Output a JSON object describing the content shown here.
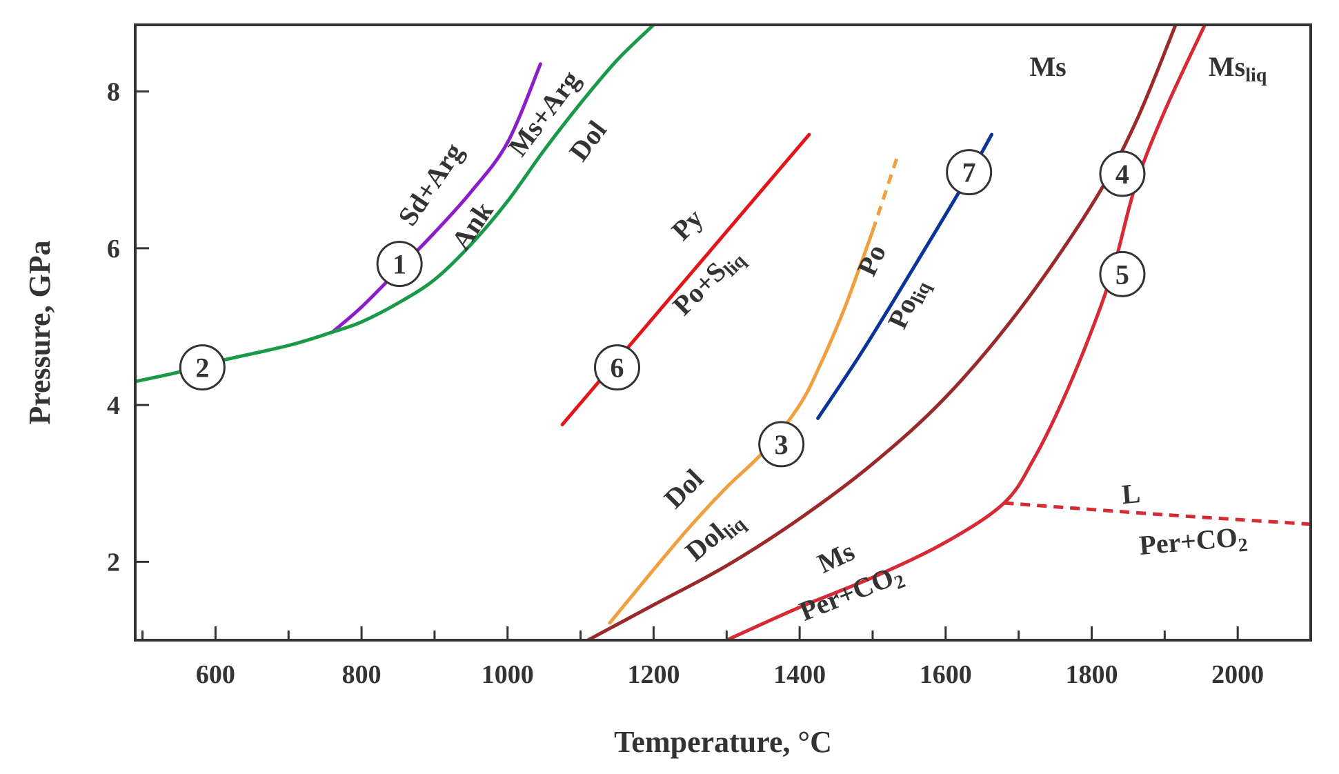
{
  "chart_data": {
    "type": "line",
    "xlabel": "Temperature, °C",
    "ylabel": "Pressure, GPa",
    "xlim": [
      490,
      2100
    ],
    "ylim": [
      1.0,
      8.85
    ],
    "xticks": [
      600,
      800,
      1000,
      1200,
      1400,
      1600,
      1800,
      2000
    ],
    "yticks": [
      2,
      4,
      6,
      8
    ],
    "grid": false,
    "colors": {
      "frame": "#333333",
      "text": "#333333",
      "marker_fill": "#ffffff"
    },
    "series": [
      {
        "color": "#8a1fc9",
        "points": [
          [
            760,
            4.93
          ],
          [
            800,
            5.25
          ],
          [
            850,
            5.72
          ],
          [
            900,
            6.2
          ],
          [
            950,
            6.72
          ],
          [
            1000,
            7.35
          ],
          [
            1045,
            8.35
          ]
        ]
      },
      {
        "color": "#1a9a49",
        "points": [
          [
            490,
            4.3
          ],
          [
            550,
            4.42
          ],
          [
            600,
            4.55
          ],
          [
            700,
            4.76
          ],
          [
            760,
            4.93
          ],
          [
            800,
            5.06
          ],
          [
            850,
            5.3
          ],
          [
            900,
            5.6
          ],
          [
            950,
            6.05
          ],
          [
            1000,
            6.6
          ],
          [
            1050,
            7.25
          ],
          [
            1100,
            7.85
          ],
          [
            1150,
            8.4
          ],
          [
            1200,
            8.85
          ]
        ]
      },
      {
        "color": "#e0161b",
        "points": [
          [
            1075,
            3.75
          ],
          [
            1413,
            7.45
          ]
        ]
      },
      {
        "color": "#f0a040",
        "points": [
          [
            1140,
            1.22
          ],
          [
            1200,
            1.9
          ],
          [
            1250,
            2.45
          ],
          [
            1300,
            2.95
          ],
          [
            1350,
            3.4
          ],
          [
            1400,
            4.0
          ],
          [
            1430,
            4.55
          ],
          [
            1460,
            5.2
          ],
          [
            1480,
            5.7
          ],
          [
            1500,
            6.22
          ]
        ]
      },
      {
        "color": "#f0a040",
        "dashed": true,
        "points": [
          [
            1500,
            6.22
          ],
          [
            1535,
            7.2
          ]
        ]
      },
      {
        "color": "#0a3598",
        "points": [
          [
            1425,
            3.83
          ],
          [
            1480,
            4.6
          ],
          [
            1530,
            5.35
          ],
          [
            1580,
            6.12
          ],
          [
            1630,
            6.9
          ],
          [
            1663,
            7.45
          ]
        ]
      },
      {
        "color": "#9a2a2a",
        "points": [
          [
            1110,
            1.0
          ],
          [
            1200,
            1.45
          ],
          [
            1300,
            1.95
          ],
          [
            1400,
            2.55
          ],
          [
            1500,
            3.25
          ],
          [
            1600,
            4.1
          ],
          [
            1700,
            5.2
          ],
          [
            1800,
            6.55
          ],
          [
            1860,
            7.6
          ],
          [
            1915,
            8.85
          ]
        ]
      },
      {
        "color": "#d62b34",
        "points": [
          [
            1300,
            1.0
          ],
          [
            1400,
            1.42
          ],
          [
            1500,
            1.8
          ],
          [
            1600,
            2.25
          ],
          [
            1680,
            2.75
          ],
          [
            1720,
            3.3
          ],
          [
            1760,
            4.05
          ],
          [
            1800,
            4.95
          ],
          [
            1830,
            5.75
          ],
          [
            1860,
            6.8
          ],
          [
            1900,
            7.75
          ],
          [
            1955,
            8.85
          ]
        ]
      },
      {
        "color": "#d62b34",
        "dashed": true,
        "points": [
          [
            1680,
            2.75
          ],
          [
            1900,
            2.6
          ],
          [
            2100,
            2.48
          ]
        ]
      }
    ],
    "annotations": [
      {
        "text": "Sd+Arg",
        "x": 905,
        "y": 6.75,
        "angle": -56
      },
      {
        "text": "Ank",
        "x": 962,
        "y": 6.22,
        "angle": -56
      },
      {
        "text": "Ms+Arg",
        "x": 1060,
        "y": 7.65,
        "angle": -53
      },
      {
        "text": "Dol",
        "x": 1120,
        "y": 7.3,
        "angle": -53
      },
      {
        "text": "Py",
        "x": 1255,
        "y": 6.22,
        "angle": -45
      },
      {
        "text": "Po+S",
        "sub": "liq",
        "x": 1282,
        "y": 5.5,
        "angle": -45
      },
      {
        "text": "Po",
        "x": 1510,
        "y": 5.8,
        "angle": -65
      },
      {
        "text": "Po",
        "sub": "liq",
        "x": 1558,
        "y": 5.25,
        "angle": -65
      },
      {
        "text": "Dol",
        "x": 1250,
        "y": 2.85,
        "angle": -45
      },
      {
        "text": "Dol",
        "sub": "liq",
        "x": 1290,
        "y": 2.25,
        "angle": -40
      },
      {
        "text": "Ms",
        "x": 1455,
        "y": 1.95,
        "angle": -25
      },
      {
        "text": "Per+CO",
        "sub": "2",
        "x": 1475,
        "y": 1.5,
        "angle": -22
      },
      {
        "text": "L",
        "x": 1855,
        "y": 2.75,
        "angle": -5
      },
      {
        "text": "Per+CO",
        "sub": "2",
        "x": 1940,
        "y": 2.15,
        "angle": -5
      },
      {
        "text": "Ms",
        "x": 1740,
        "y": 8.2,
        "angle": 0
      },
      {
        "text": "Ms",
        "sub": "liq",
        "x": 2000,
        "y": 8.2,
        "angle": 0
      }
    ],
    "markers": [
      {
        "label": "1",
        "x": 852,
        "y": 5.8
      },
      {
        "label": "2",
        "x": 582,
        "y": 4.48
      },
      {
        "label": "3",
        "x": 1375,
        "y": 3.5
      },
      {
        "label": "4",
        "x": 1842,
        "y": 6.95
      },
      {
        "label": "5",
        "x": 1842,
        "y": 5.67
      },
      {
        "label": "6",
        "x": 1150,
        "y": 4.48
      },
      {
        "label": "7",
        "x": 1632,
        "y": 6.97
      }
    ]
  }
}
